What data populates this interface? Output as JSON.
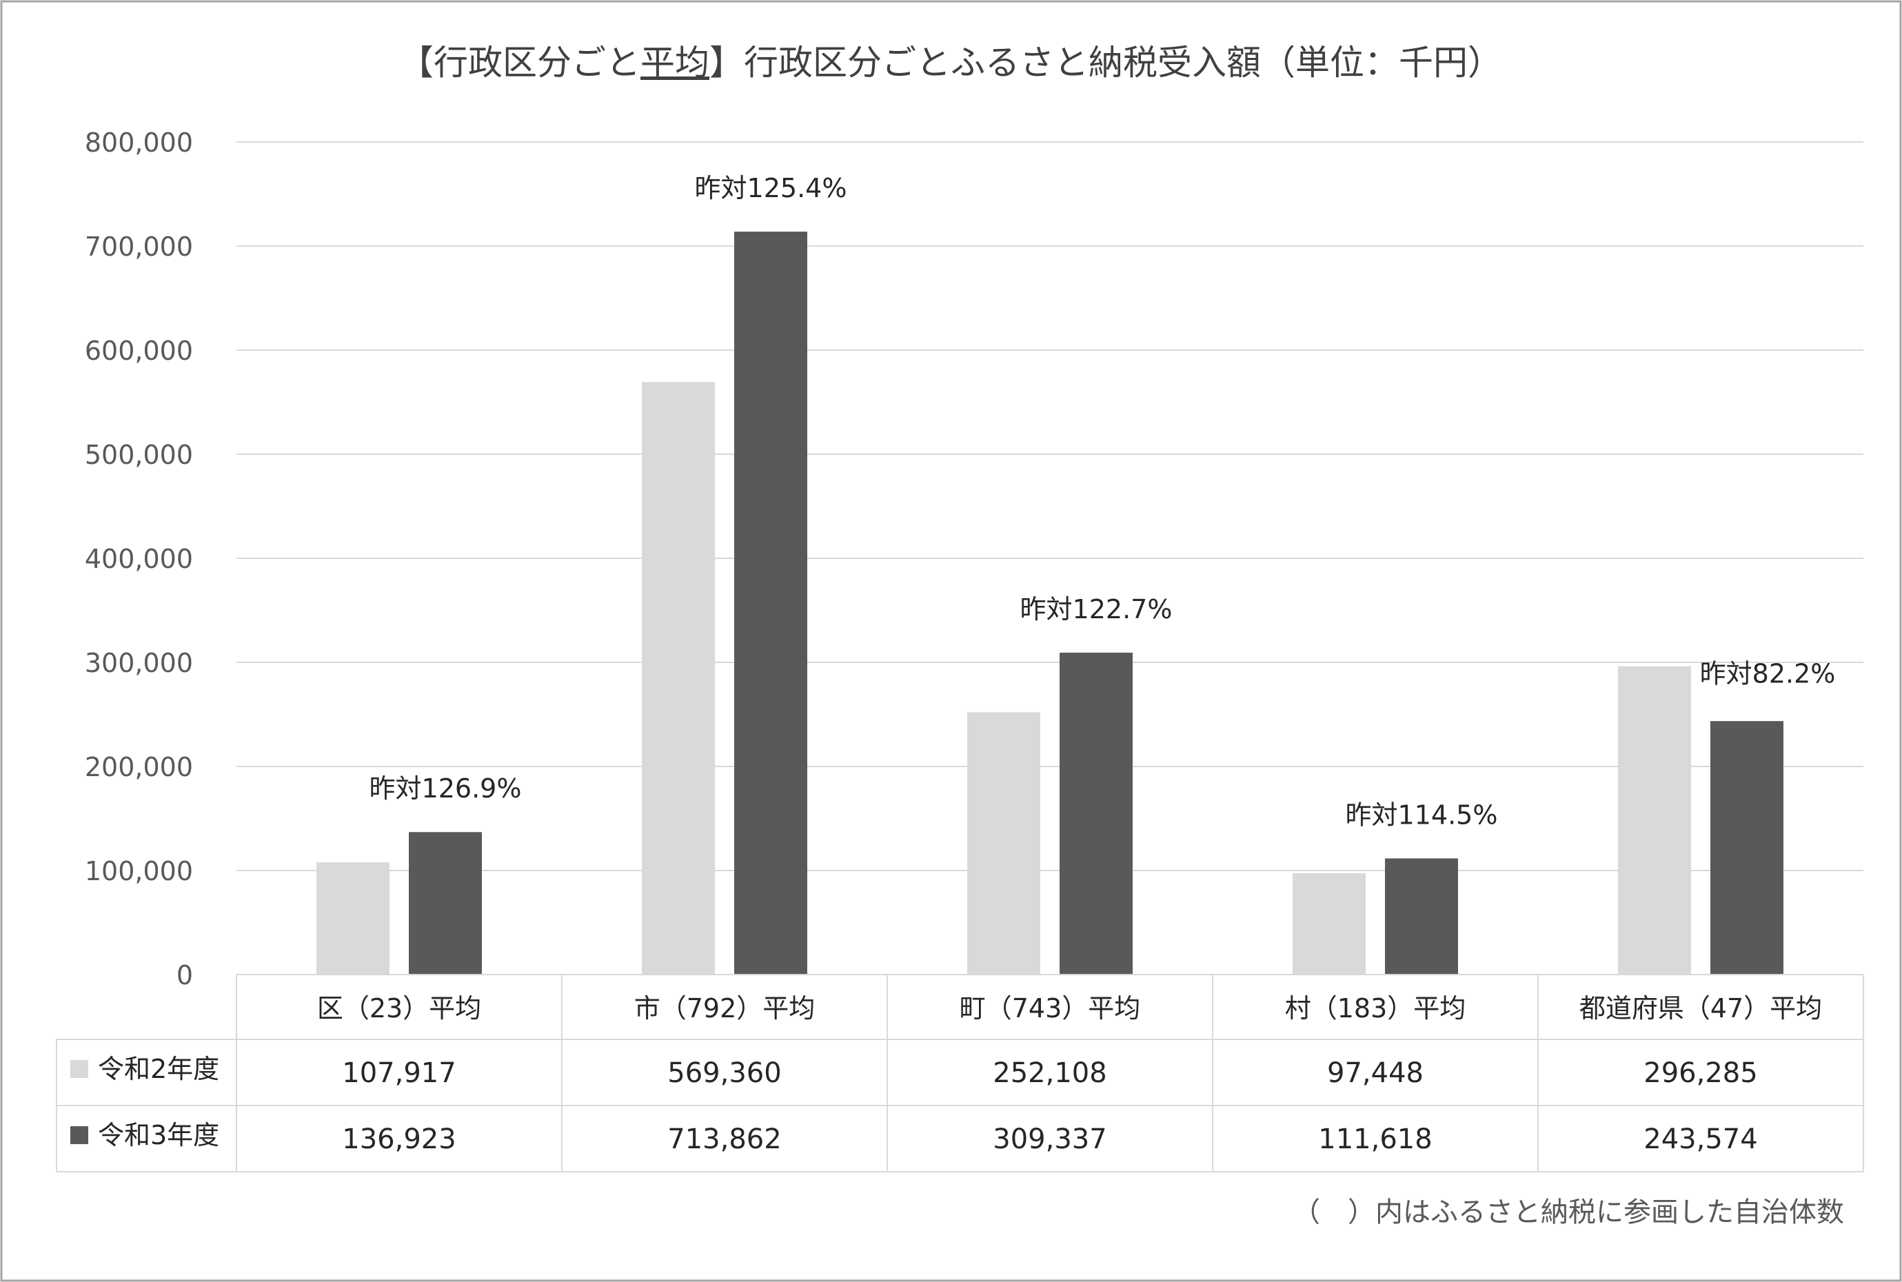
{
  "chart_data": {
    "type": "bar",
    "title": {
      "prefix": "【行政区分ごと",
      "underlined": "平均",
      "suffix": "】行政区分ごとふるさと納税受入額（単位：千円）"
    },
    "categories": [
      "区（23）平均",
      "市（792）平均",
      "町（743）平均",
      "村（183）平均",
      "都道府県（47）平均"
    ],
    "series": [
      {
        "name": "令和2年度",
        "color": "#d9d9d9",
        "values": [
          107917,
          569360,
          252108,
          97448,
          296285
        ]
      },
      {
        "name": "令和3年度",
        "color": "#595959",
        "values": [
          136923,
          713862,
          309337,
          111618,
          243574
        ]
      }
    ],
    "display_values": [
      [
        "107,917",
        "569,360",
        "252,108",
        "97,448",
        "296,285"
      ],
      [
        "136,923",
        "713,862",
        "309,337",
        "111,618",
        "243,574"
      ]
    ],
    "annotations": [
      "昨対126.9%",
      "昨対125.4%",
      "昨対122.7%",
      "昨対114.5%",
      "昨対82.2%"
    ],
    "y_ticks": [
      "0",
      "100,000",
      "200,000",
      "300,000",
      "400,000",
      "500,000",
      "600,000",
      "700,000",
      "800,000"
    ],
    "ylim": [
      0,
      800000
    ],
    "grid": true,
    "legend": "data-table-left"
  },
  "footnote": "（　）内はふるさと納税に参画した自治体数"
}
